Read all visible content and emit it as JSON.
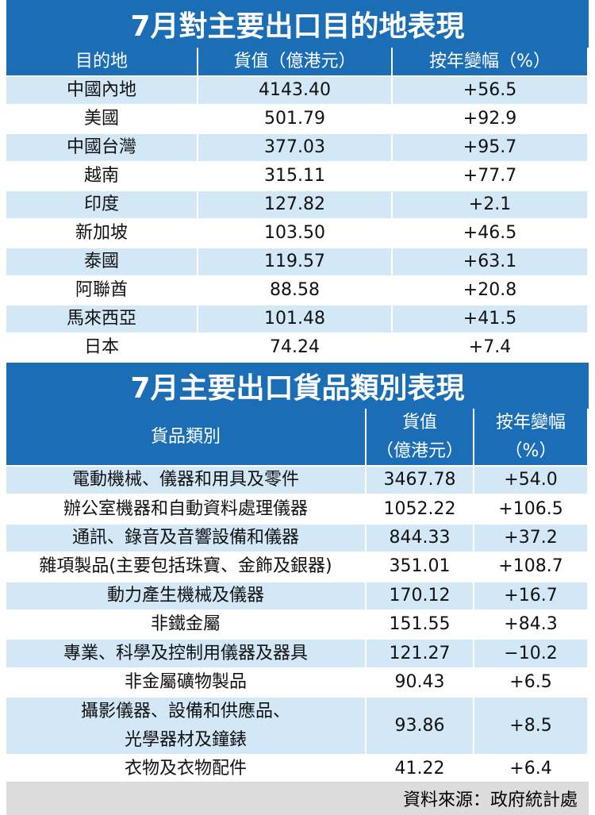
{
  "tables": [
    {
      "title": "7月對主要出口目的地表現",
      "header": [
        [
          "目的地"
        ],
        [
          "貨值（億港元）"
        ],
        [
          "按年變幅（%）"
        ]
      ],
      "rows": [
        [
          [
            "中國內地"
          ],
          [
            "4143.40"
          ],
          [
            "+56.5"
          ]
        ],
        [
          [
            "美國"
          ],
          [
            "501.79"
          ],
          [
            "+92.9"
          ]
        ],
        [
          [
            "中國台灣"
          ],
          [
            "377.03"
          ],
          [
            "+95.7"
          ]
        ],
        [
          [
            "越南"
          ],
          [
            "315.11"
          ],
          [
            "+77.7"
          ]
        ],
        [
          [
            "印度"
          ],
          [
            "127.82"
          ],
          [
            "+2.1"
          ]
        ],
        [
          [
            "新加坡"
          ],
          [
            "103.50"
          ],
          [
            "+46.5"
          ]
        ],
        [
          [
            "泰國"
          ],
          [
            "119.57"
          ],
          [
            "+63.1"
          ]
        ],
        [
          [
            "阿聯酋"
          ],
          [
            "88.58"
          ],
          [
            "+20.8"
          ]
        ],
        [
          [
            "馬來西亞"
          ],
          [
            "101.48"
          ],
          [
            "+41.5"
          ]
        ],
        [
          [
            "日本"
          ],
          [
            "74.24"
          ],
          [
            "+7.4"
          ]
        ]
      ]
    },
    {
      "title": "7月主要出口貨品類別表現",
      "header": [
        [
          "貨品類別"
        ],
        [
          "貨值",
          "（億港元）"
        ],
        [
          "按年變幅",
          "（%）"
        ]
      ],
      "rows": [
        [
          [
            "電動機械、儀器和用具及零件"
          ],
          [
            "3467.78"
          ],
          [
            "+54.0"
          ]
        ],
        [
          [
            "辦公室機器和自動資料處理儀器"
          ],
          [
            "1052.22"
          ],
          [
            "+106.5"
          ]
        ],
        [
          [
            "通訊、錄音及音響設備和儀器"
          ],
          [
            "844.33"
          ],
          [
            "+37.2"
          ]
        ],
        [
          [
            "雜項製品(主要包括珠寶、金飾及銀器)"
          ],
          [
            "351.01"
          ],
          [
            "+108.7"
          ]
        ],
        [
          [
            "動力產生機械及儀器"
          ],
          [
            "170.12"
          ],
          [
            "+16.7"
          ]
        ],
        [
          [
            "非鐵金屬"
          ],
          [
            "151.55"
          ],
          [
            "+84.3"
          ]
        ],
        [
          [
            "專業、科學及控制用儀器及器具"
          ],
          [
            "121.27"
          ],
          [
            "−10.2"
          ]
        ],
        [
          [
            "非金屬礦物製品"
          ],
          [
            "90.43"
          ],
          [
            "+6.5"
          ]
        ],
        [
          [
            "攝影儀器、設備和供應品、",
            "光學器材及鐘錶"
          ],
          [
            "93.86"
          ],
          [
            "+8.5"
          ]
        ],
        [
          [
            "衣物及衣物配件"
          ],
          [
            "41.22"
          ],
          [
            "+6.4"
          ]
        ]
      ]
    }
  ],
  "source": "資料來源：政府統計處"
}
